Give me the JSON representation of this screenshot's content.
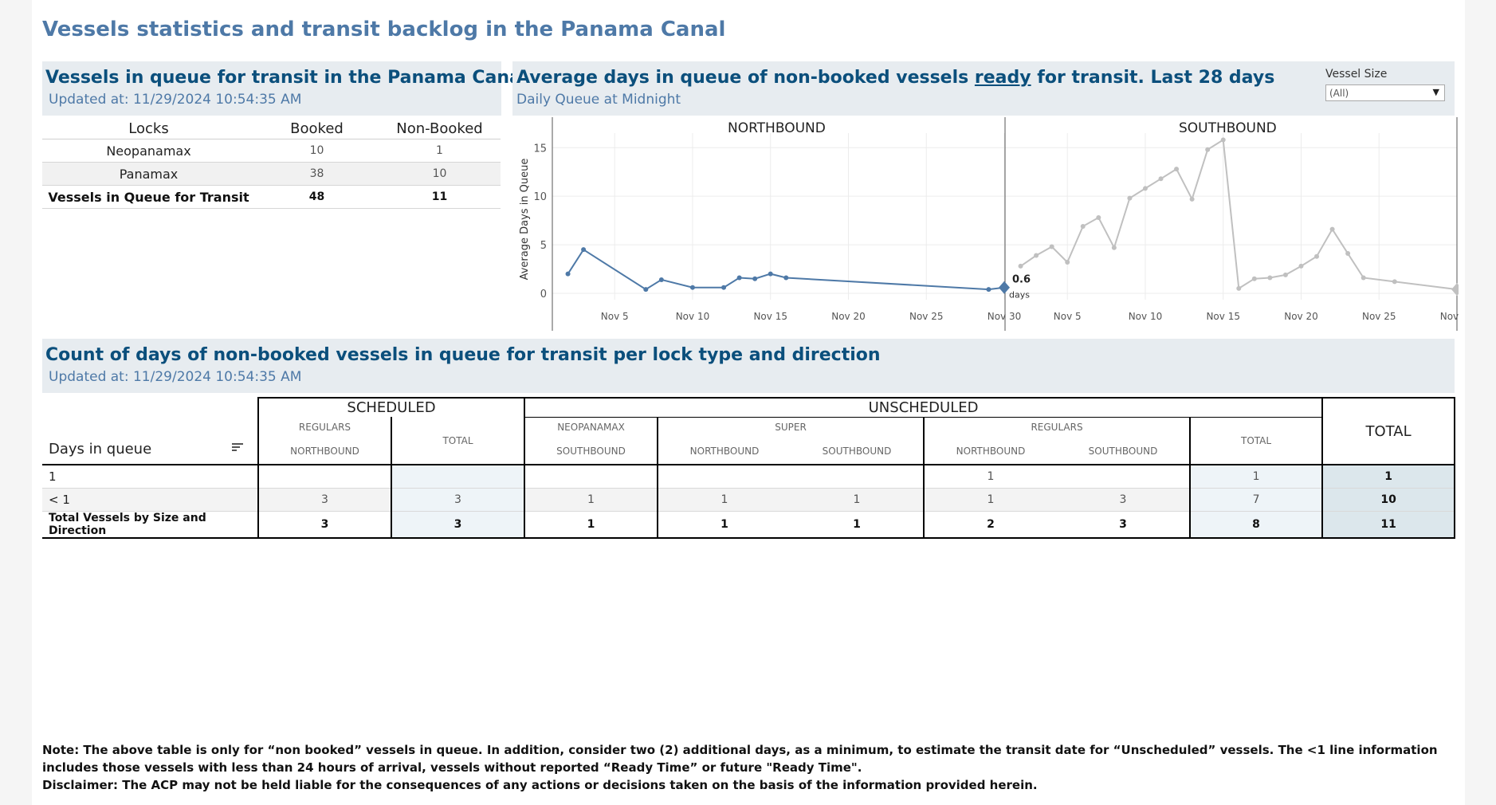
{
  "page_title": "Vessels statistics and transit backlog in the Panama Canal",
  "queue_panel": {
    "title": "Vessels in queue for transit in the Panama Canal",
    "updated": "Updated at:  11/29/2024 10:54:35 AM",
    "columns": [
      "Locks",
      "Booked",
      "Non-Booked"
    ],
    "rows": [
      {
        "lock": "Neopanamax",
        "booked": "10",
        "non_booked": "1"
      },
      {
        "lock": "Panamax",
        "booked": "38",
        "non_booked": "10"
      },
      {
        "lock": "Vessels in Queue for Transit",
        "booked": "48",
        "non_booked": "11"
      }
    ]
  },
  "avg_panel": {
    "title_pre": "Average days in queue of non-booked vessels ",
    "title_link": "ready",
    "title_post": " for transit. Last 28 days",
    "subtitle": "Daily Queue at Midnight",
    "filter_label": "Vessel Size",
    "filter_value": "(All)",
    "filter_caret": "▼"
  },
  "chart_data": {
    "type": "line",
    "ylabel": "Average Days in Queue",
    "yticks": [
      "15",
      "10",
      "5",
      "0"
    ],
    "ylim": [
      0,
      16.5
    ],
    "xticks": [
      "Nov 5",
      "Nov 10",
      "Nov 15",
      "Nov 20",
      "Nov 25",
      "Nov 30"
    ],
    "panels": [
      {
        "name": "NORTHBOUND",
        "color": "#4e79a7",
        "x": [
          2,
          3,
          7,
          8,
          10,
          12,
          13,
          14,
          15,
          16,
          29,
          30
        ],
        "y": [
          2.0,
          4.5,
          0.4,
          1.4,
          0.6,
          0.6,
          1.6,
          1.5,
          2.0,
          1.6,
          0.4,
          0.6
        ],
        "last_value": "0.6",
        "last_unit": "days"
      },
      {
        "name": "SOUTHBOUND",
        "color": "#c0c0c0",
        "x": [
          2,
          3,
          4,
          5,
          6,
          7,
          8,
          9,
          10,
          11,
          12,
          13,
          14,
          15,
          16,
          17,
          18,
          19,
          20,
          21,
          22,
          23,
          24,
          26,
          30
        ],
        "y": [
          2.8,
          3.9,
          4.8,
          3.2,
          6.9,
          7.8,
          4.7,
          9.8,
          10.8,
          11.8,
          12.8,
          9.7,
          14.8,
          15.8,
          0.5,
          1.5,
          1.6,
          1.9,
          2.8,
          3.8,
          6.6,
          4.1,
          1.6,
          1.2,
          0.4
        ],
        "last_value": "0.4",
        "last_unit": "days"
      }
    ]
  },
  "count_panel": {
    "title": "Count of days of non-booked vessels in queue for transit per lock type and direction",
    "updated": "Updated at:  11/29/2024 10:54:35 AM",
    "row_header": "Days in queue",
    "group_headers": [
      "SCHEDULED",
      "UNSCHEDULED"
    ],
    "sub_headers": {
      "regulars": "REGULARS",
      "neopanamax": "NEOPANAMAX",
      "super": "SUPER",
      "total": "TOTAL",
      "grand_total": "TOTAL"
    },
    "directions": [
      "NORTHBOUND",
      "SOUTHBOUND",
      "NORTHBOUND",
      "SOUTHBOUND",
      "NORTHBOUND",
      "SOUTHBOUND"
    ],
    "rows": [
      {
        "label": "1",
        "cells": [
          "",
          "",
          "",
          "",
          "",
          "1",
          "",
          "1",
          "1"
        ]
      },
      {
        "label": "< 1",
        "cells": [
          "3",
          "3",
          "1",
          "1",
          "1",
          "1",
          "3",
          "7",
          "10"
        ]
      },
      {
        "label": "Total Vessels by Size and Direction",
        "cells": [
          "3",
          "3",
          "1",
          "1",
          "1",
          "2",
          "3",
          "8",
          "11"
        ]
      }
    ]
  },
  "notes": [
    "Note:  The above table is only for “non booked” vessels in queue. In addition, consider two (2) additional days, as a minimum, to estimate the transit date for “Unscheduled” vessels.  The <1 line information includes those vessels with less than 24 hours of arrival, vessels without reported “Ready Time” or future \"Ready Time\".",
    "Disclaimer: The ACP may not be held liable for the consequences of any actions or decisions taken on the basis of the information provided herein."
  ]
}
